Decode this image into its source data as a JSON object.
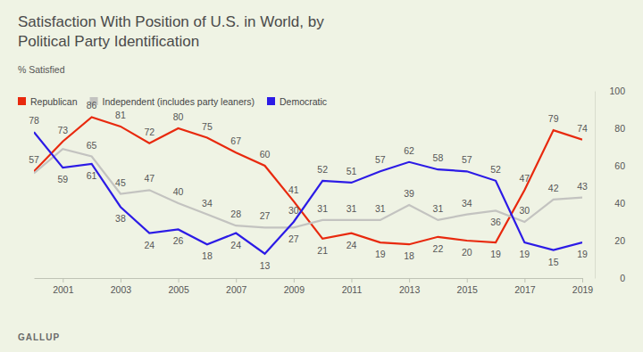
{
  "chart_data": {
    "type": "line",
    "title": "Satisfaction With Position of U.S. in World, by Political Party Identification",
    "subtitle": "% Satisfied",
    "source": "GALLUP",
    "x": [
      2000,
      2001,
      2002,
      2003,
      2004,
      2005,
      2006,
      2007,
      2008,
      2009,
      2010,
      2011,
      2012,
      2013,
      2014,
      2015,
      2016,
      2017,
      2018,
      2019
    ],
    "xlim": [
      2000,
      2019
    ],
    "xticks": [
      2001,
      2003,
      2005,
      2007,
      2009,
      2011,
      2013,
      2015,
      2017,
      2019
    ],
    "ylim": [
      0,
      100
    ],
    "yticks": [
      0,
      20,
      40,
      60,
      80,
      100
    ],
    "grid": false,
    "legend": "top-left",
    "data_labels": true,
    "series": [
      {
        "name": "Republican",
        "color": "#e8290e",
        "values": [
          57,
          73,
          86,
          81,
          72,
          80,
          75,
          67,
          60,
          41,
          21,
          24,
          19,
          18,
          22,
          20,
          19,
          47,
          79,
          74
        ]
      },
      {
        "name": "Independent (includes party leaners)",
        "color": "#c3c3c0",
        "values": [
          56,
          69,
          65,
          45,
          47,
          40,
          34,
          28,
          27,
          27,
          31,
          31,
          31,
          39,
          31,
          34,
          36,
          30,
          42,
          43
        ],
        "value_labels": [
          null,
          null,
          "65",
          "45",
          "47",
          "40",
          "34",
          "28",
          "27",
          "27",
          "31",
          "31",
          "31",
          "39",
          "31",
          "34",
          "36",
          "30",
          "42",
          "43"
        ]
      },
      {
        "name": "Democratic",
        "color": "#2c1be6",
        "values": [
          78,
          59,
          61,
          38,
          24,
          26,
          18,
          24,
          13,
          30,
          52,
          51,
          57,
          62,
          58,
          57,
          52,
          19,
          15,
          19
        ]
      }
    ]
  }
}
